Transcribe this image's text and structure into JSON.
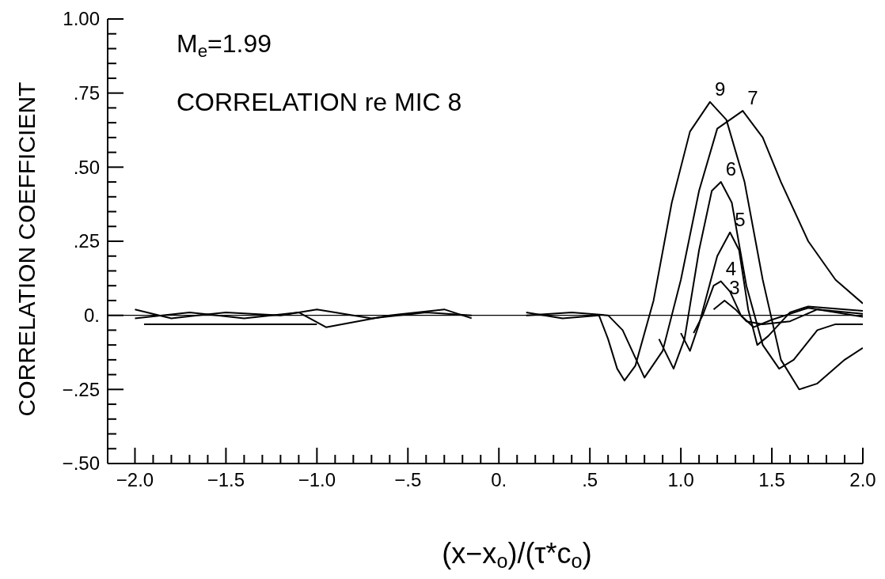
{
  "chart_data": {
    "type": "line",
    "xlabel": "(x−x$_{o}$)/(τ*c$_{o}$)",
    "ylabel": "CORRELATION COEFFICIENT",
    "annotations": [
      "M$_{e}$=1.99",
      "CORRELATION re MIC 8"
    ],
    "xlim": [
      -2.15,
      2.0
    ],
    "ylim": [
      -0.5,
      1.0
    ],
    "xticks": [
      {
        "value": -2.0,
        "label": "−2.0"
      },
      {
        "value": -1.9,
        "label": null
      },
      {
        "value": -1.8,
        "label": null
      },
      {
        "value": -1.7,
        "label": null
      },
      {
        "value": -1.6,
        "label": null
      },
      {
        "value": -1.5,
        "label": "−1.5"
      },
      {
        "value": -1.4,
        "label": null
      },
      {
        "value": -1.3,
        "label": null
      },
      {
        "value": -1.2,
        "label": null
      },
      {
        "value": -1.1,
        "label": null
      },
      {
        "value": -1.0,
        "label": "−1.0"
      },
      {
        "value": -0.9,
        "label": null
      },
      {
        "value": -0.8,
        "label": null
      },
      {
        "value": -0.7,
        "label": null
      },
      {
        "value": -0.6,
        "label": null
      },
      {
        "value": -0.5,
        "label": "−.5"
      },
      {
        "value": -0.4,
        "label": null
      },
      {
        "value": -0.3,
        "label": null
      },
      {
        "value": -0.2,
        "label": null
      },
      {
        "value": -0.1,
        "label": null
      },
      {
        "value": 0,
        "label": "0."
      },
      {
        "value": 0.1,
        "label": null
      },
      {
        "value": 0.2,
        "label": null
      },
      {
        "value": 0.3,
        "label": null
      },
      {
        "value": 0.4,
        "label": null
      },
      {
        "value": 0.5,
        "label": ".5"
      },
      {
        "value": 0.6,
        "label": null
      },
      {
        "value": 0.7,
        "label": null
      },
      {
        "value": 0.8,
        "label": null
      },
      {
        "value": 0.9,
        "label": null
      },
      {
        "value": 1.0,
        "label": "1.0"
      },
      {
        "value": 1.1,
        "label": null
      },
      {
        "value": 1.2,
        "label": null
      },
      {
        "value": 1.3,
        "label": null
      },
      {
        "value": 1.4,
        "label": null
      },
      {
        "value": 1.5,
        "label": "1.5"
      },
      {
        "value": 1.6,
        "label": null
      },
      {
        "value": 1.7,
        "label": null
      },
      {
        "value": 1.8,
        "label": null
      },
      {
        "value": 1.9,
        "label": null
      },
      {
        "value": 2.0,
        "label": "2.0"
      }
    ],
    "yticks": [
      {
        "value": -0.5,
        "label": "−.50"
      },
      {
        "value": -0.45,
        "label": null
      },
      {
        "value": -0.4,
        "label": null
      },
      {
        "value": -0.35,
        "label": null
      },
      {
        "value": -0.3,
        "label": null
      },
      {
        "value": -0.25,
        "label": "−.25"
      },
      {
        "value": -0.2,
        "label": null
      },
      {
        "value": -0.15,
        "label": null
      },
      {
        "value": -0.1,
        "label": null
      },
      {
        "value": -0.05,
        "label": null
      },
      {
        "value": 0,
        "label": "0."
      },
      {
        "value": 0.05,
        "label": null
      },
      {
        "value": 0.1,
        "label": null
      },
      {
        "value": 0.15,
        "label": null
      },
      {
        "value": 0.2,
        "label": null
      },
      {
        "value": 0.25,
        "label": ".25"
      },
      {
        "value": 0.3,
        "label": null
      },
      {
        "value": 0.35,
        "label": null
      },
      {
        "value": 0.4,
        "label": null
      },
      {
        "value": 0.45,
        "label": null
      },
      {
        "value": 0.5,
        "label": ".50"
      },
      {
        "value": 0.55,
        "label": null
      },
      {
        "value": 0.6,
        "label": null
      },
      {
        "value": 0.65,
        "label": null
      },
      {
        "value": 0.7,
        "label": null
      },
      {
        "value": 0.75,
        "label": ".75"
      },
      {
        "value": 0.8,
        "label": null
      },
      {
        "value": 0.85,
        "label": null
      },
      {
        "value": 0.9,
        "label": null
      },
      {
        "value": 0.95,
        "label": null
      },
      {
        "value": 1.0,
        "label": "1.00"
      }
    ],
    "ref_lines": [
      {
        "axis": "y",
        "value": 0,
        "color": "#000000"
      }
    ],
    "marker": "none",
    "line_style": "solid",
    "series": [
      {
        "name": "9",
        "color": "#000000",
        "x": [
          -2.0,
          -1.8,
          -1.5,
          -1.2,
          -1.0,
          -0.7,
          -0.4,
          -0.15,
          0.0,
          0.15,
          0.35,
          0.55,
          0.6,
          0.65,
          0.69,
          0.75,
          0.85,
          0.95,
          1.05,
          1.16,
          1.25,
          1.35,
          1.45,
          1.55,
          1.65,
          1.75,
          1.9,
          2.0
        ],
        "values": [
          0.02,
          -0.01,
          0.01,
          0.0,
          0.02,
          -0.01,
          0.01,
          0.0,
          null,
          0.01,
          -0.01,
          0.0,
          -0.08,
          -0.18,
          -0.22,
          -0.17,
          0.05,
          0.38,
          0.62,
          0.72,
          0.66,
          0.45,
          0.12,
          -0.15,
          -0.25,
          -0.23,
          -0.15,
          -0.11
        ]
      },
      {
        "name": "7",
        "color": "#000000",
        "x": [
          -2.0,
          -1.7,
          -1.4,
          -1.1,
          -0.95,
          -0.6,
          -0.3,
          -0.15,
          0.0,
          0.15,
          0.4,
          0.6,
          0.68,
          0.8,
          0.9,
          1.0,
          1.1,
          1.2,
          1.34,
          1.45,
          1.55,
          1.7,
          1.85,
          2.0
        ],
        "values": [
          -0.01,
          0.01,
          -0.01,
          0.01,
          -0.04,
          0.0,
          0.02,
          -0.01,
          null,
          0.0,
          0.01,
          0.0,
          -0.05,
          -0.21,
          -0.12,
          0.12,
          0.42,
          0.63,
          0.69,
          0.6,
          0.45,
          0.25,
          0.12,
          0.04
        ]
      },
      {
        "name": "6",
        "color": "#000000",
        "x": [
          0.88,
          0.96,
          1.02,
          1.1,
          1.17,
          1.22,
          1.28,
          1.36,
          1.45,
          1.54,
          1.62,
          1.75,
          1.85,
          2.0
        ],
        "values": [
          -0.08,
          -0.18,
          -0.08,
          0.22,
          0.42,
          0.45,
          0.38,
          0.1,
          -0.1,
          -0.18,
          -0.15,
          -0.05,
          -0.03,
          -0.03
        ]
      },
      {
        "name": "5",
        "color": "#000000",
        "x": [
          1.0,
          1.05,
          1.1,
          1.2,
          1.27,
          1.32,
          1.37,
          1.42,
          1.48,
          1.6,
          1.7,
          2.0
        ],
        "values": [
          -0.06,
          -0.12,
          -0.03,
          0.2,
          0.28,
          0.22,
          0.02,
          -0.1,
          -0.07,
          0.01,
          0.03,
          0.015
        ]
      },
      {
        "name": "4",
        "color": "#000000",
        "x": [
          1.07,
          1.12,
          1.18,
          1.22,
          1.27,
          1.33,
          1.4,
          1.5,
          1.7,
          2.0
        ],
        "values": [
          -0.06,
          0.0,
          0.1,
          0.115,
          0.08,
          0.0,
          -0.04,
          -0.015,
          0.025,
          -0.005
        ]
      },
      {
        "name": "3",
        "color": "#000000",
        "x": [
          1.18,
          1.24,
          1.3,
          1.36,
          1.45,
          1.6,
          1.75,
          2.0
        ],
        "values": [
          0.02,
          0.05,
          0.02,
          -0.02,
          -0.03,
          -0.02,
          0.02,
          0.005
        ]
      },
      {
        "color": "#000000",
        "x": [
          -1.95,
          -1.0
        ],
        "values": [
          -0.03,
          -0.03
        ]
      }
    ]
  }
}
